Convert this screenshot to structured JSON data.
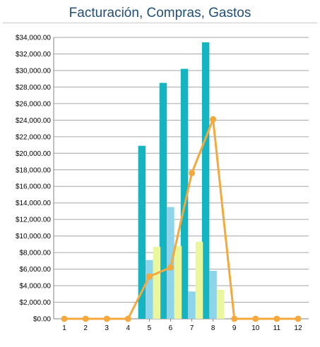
{
  "chart_data": {
    "type": "bar",
    "title": "Facturación, Compras, Gastos",
    "xlabel": "",
    "ylabel": "",
    "categories": [
      "1",
      "2",
      "3",
      "4",
      "5",
      "6",
      "7",
      "8",
      "9",
      "10",
      "11",
      "12"
    ],
    "ylim": [
      0,
      34000
    ],
    "y_tick_step": 2000,
    "y_tick_format": "currency-2dp",
    "y_tick_labels": [
      "$0.00",
      "$2,000.00",
      "$4,000.00",
      "$6,000.00",
      "$8,000.00",
      "$10,000.00",
      "$12,000.00",
      "$14,000.00",
      "$16,000.00",
      "$18,000.00",
      "$20,000.00",
      "$22,000.00",
      "$24,000.00",
      "$26,000.00",
      "$28,000.00",
      "$30,000.00",
      "$32,000.00",
      "$34,000.00"
    ],
    "grid": true,
    "legend": "none",
    "series": [
      {
        "kind": "bar",
        "color": "#14b4c0",
        "values": [
          0,
          0,
          0,
          0,
          20900,
          28500,
          30200,
          33400,
          0,
          0,
          0,
          0
        ]
      },
      {
        "kind": "bar",
        "color": "#8ed4ea",
        "values": [
          0,
          0,
          0,
          0,
          7100,
          13500,
          3300,
          5800,
          0,
          0,
          0,
          0
        ]
      },
      {
        "kind": "bar",
        "color": "#eaf79c",
        "values": [
          0,
          0,
          0,
          0,
          8700,
          8800,
          9300,
          3500,
          0,
          0,
          0,
          0
        ]
      },
      {
        "kind": "line",
        "color": "#f5a83c",
        "values": [
          0,
          0,
          0,
          0,
          5100,
          6200,
          17600,
          24100,
          0,
          0,
          0,
          0
        ]
      }
    ]
  }
}
